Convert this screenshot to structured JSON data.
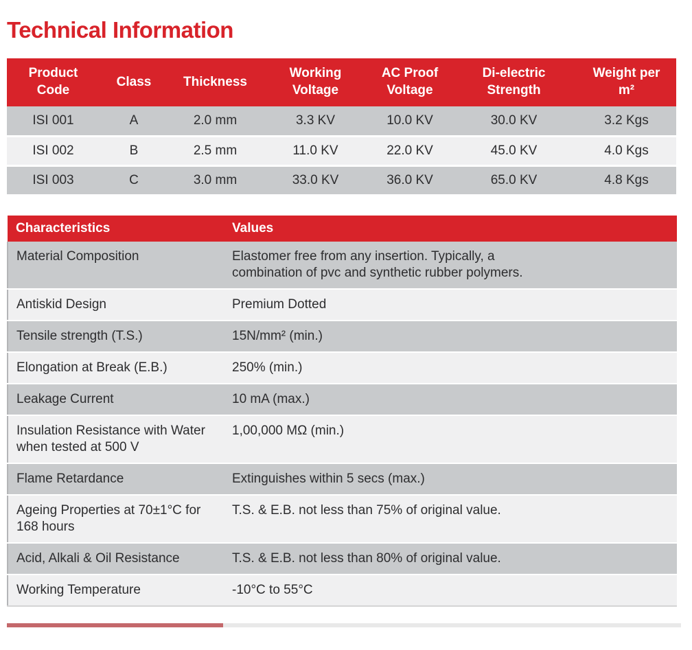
{
  "page": {
    "title": "Technical Information"
  },
  "colors": {
    "accent_red": "#d8232a",
    "row_gray": "#c8cacc",
    "row_light": "#f0f0f1",
    "text_dark": "#2d2d2f",
    "next_table_muted_red": "#c4686b",
    "next_table_strip_gray": "#e9e9e9"
  },
  "spec_table": {
    "headers": [
      "Product Code",
      "Class",
      "Thickness",
      "Working Voltage",
      "AC Proof Voltage",
      "Di-electric Strength",
      "Weight per m²"
    ],
    "rows": [
      [
        "ISI 001",
        "A",
        "2.0 mm",
        "3.3 KV",
        "10.0 KV",
        "30.0 KV",
        "3.2 Kgs"
      ],
      [
        "ISI 002",
        "B",
        "2.5 mm",
        "11.0 KV",
        "22.0 KV",
        "45.0 KV",
        "4.0 Kgs"
      ],
      [
        "ISI 003",
        "C",
        "3.0 mm",
        "33.0 KV",
        "36.0 KV",
        "65.0 KV",
        "4.8 Kgs"
      ]
    ]
  },
  "characteristics_table": {
    "headers": [
      "Characteristics",
      "Values"
    ],
    "rows": [
      {
        "characteristic": "Material Composition",
        "value": "Elastomer free from any insertion. Typically, a combination of pvc and synthetic rubber polymers."
      },
      {
        "characteristic": "Antiskid Design",
        "value": "Premium Dotted"
      },
      {
        "characteristic": "Tensile strength (T.S.)",
        "value": "15N/mm² (min.)"
      },
      {
        "characteristic": "Elongation at Break (E.B.)",
        "value": "250% (min.)"
      },
      {
        "characteristic": "Leakage Current",
        "value": "10 mA (max.)"
      },
      {
        "characteristic": "Insulation Resistance with Water when tested at 500 V",
        "value": "1,00,000 MΩ (min.)"
      },
      {
        "characteristic": "Flame Retardance",
        "value": "Extinguishes within 5 secs (max.)"
      },
      {
        "characteristic": "Ageing Properties at 70±1°C for 168 hours",
        "value": "T.S. & E.B. not less than 75% of original value."
      },
      {
        "characteristic": "Acid, Alkali & Oil Resistance",
        "value": "T.S. & E.B. not less than 80% of original value."
      },
      {
        "characteristic": "Working Temperature",
        "value": "-10°C to 55°C"
      }
    ]
  }
}
